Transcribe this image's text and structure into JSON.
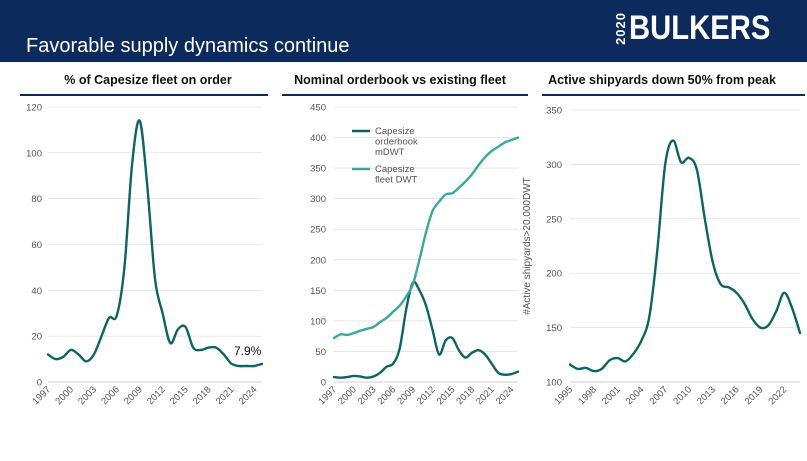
{
  "header": {
    "title": "Favorable supply dynamics continue"
  },
  "logo": {
    "prefix": "2020",
    "name": "BULKERS"
  },
  "colors": {
    "header_bg": "#0d2a5c",
    "dark_teal": "#0e6464",
    "light_teal": "#3aa8a0",
    "axis_text": "#555555",
    "grid": "#d9d9d9",
    "rule": "#0d2a5c"
  },
  "chart_data": [
    {
      "type": "line",
      "title": "% of Capesize fleet on order",
      "ylim": [
        0,
        120
      ],
      "yticks": [
        0,
        20,
        40,
        60,
        80,
        100,
        120
      ],
      "xlim": [
        1997,
        2025
      ],
      "xticks": [
        "1997",
        "2000",
        "2003",
        "2006",
        "2009",
        "2012",
        "2015",
        "2018",
        "2021",
        "2024"
      ],
      "annotation": "7.9%",
      "series": [
        {
          "color": "#0e6464",
          "x": [
            1997,
            1998,
            1999,
            2000,
            2001,
            2002,
            2003,
            2004,
            2005,
            2006,
            2007,
            2008,
            2009,
            2010,
            2011,
            2012,
            2013,
            2014,
            2015,
            2016,
            2017,
            2018,
            2019,
            2020,
            2021,
            2022,
            2023,
            2024,
            2025
          ],
          "values": [
            12,
            10,
            11,
            14,
            12,
            9,
            12,
            20,
            28,
            29,
            50,
            95,
            114,
            85,
            45,
            30,
            17,
            23,
            24,
            15,
            14,
            15,
            15,
            12,
            8,
            7,
            7,
            7,
            7.9
          ]
        }
      ]
    },
    {
      "type": "line",
      "title": "Nominal orderbook vs existing fleet",
      "ylim": [
        0,
        450
      ],
      "yticks": [
        0,
        50,
        100,
        150,
        200,
        250,
        300,
        350,
        400,
        450
      ],
      "xlim": [
        1997,
        2025
      ],
      "xticks": [
        "1997",
        "2000",
        "2003",
        "2006",
        "2009",
        "2012",
        "2015",
        "2018",
        "2021",
        "2024"
      ],
      "legend": "top-left",
      "series": [
        {
          "name": "Capesize orderbook mDWT",
          "color": "#0e6464",
          "x": [
            1997,
            1998,
            1999,
            2000,
            2001,
            2002,
            2003,
            2004,
            2005,
            2006,
            2007,
            2008,
            2009,
            2010,
            2011,
            2012,
            2013,
            2014,
            2015,
            2016,
            2017,
            2018,
            2019,
            2020,
            2021,
            2022,
            2023,
            2024,
            2025
          ],
          "values": [
            8,
            7,
            8,
            10,
            9,
            7,
            9,
            15,
            25,
            30,
            55,
            120,
            163,
            150,
            125,
            85,
            45,
            68,
            72,
            52,
            40,
            48,
            52,
            45,
            30,
            15,
            12,
            13,
            17
          ]
        },
        {
          "name": "Capesize fleet DWT",
          "color": "#3aa8a0",
          "x": [
            1997,
            1998,
            1999,
            2000,
            2001,
            2002,
            2003,
            2004,
            2005,
            2006,
            2007,
            2008,
            2009,
            2010,
            2011,
            2012,
            2013,
            2014,
            2015,
            2016,
            2017,
            2018,
            2019,
            2020,
            2021,
            2022,
            2023,
            2024,
            2025
          ],
          "values": [
            72,
            78,
            77,
            80,
            84,
            87,
            90,
            98,
            105,
            115,
            125,
            140,
            160,
            200,
            245,
            280,
            295,
            307,
            309,
            318,
            328,
            340,
            355,
            368,
            378,
            385,
            392,
            396,
            400
          ]
        }
      ]
    },
    {
      "type": "line",
      "title": "Active shipyards down 50% from peak",
      "ylabel": "#Active shipyards>20.000DWT",
      "ylim": [
        100,
        350
      ],
      "yticks": [
        100,
        150,
        200,
        250,
        300,
        350
      ],
      "xlim": [
        1995,
        2024
      ],
      "xticks": [
        "1995",
        "1998",
        "2001",
        "2004",
        "2007",
        "2010",
        "2013",
        "2016",
        "2019",
        "2022"
      ],
      "series": [
        {
          "color": "#0e6464",
          "x": [
            1995,
            1996,
            1997,
            1998,
            1999,
            2000,
            2001,
            2002,
            2003,
            2004,
            2005,
            2006,
            2007,
            2008,
            2009,
            2010,
            2011,
            2012,
            2013,
            2014,
            2015,
            2016,
            2017,
            2018,
            2019,
            2020,
            2021,
            2022,
            2023,
            2024
          ],
          "values": [
            116,
            112,
            113,
            110,
            112,
            120,
            122,
            119,
            126,
            138,
            160,
            220,
            300,
            322,
            302,
            306,
            295,
            250,
            210,
            190,
            187,
            182,
            172,
            158,
            150,
            152,
            165,
            182,
            168,
            145
          ]
        }
      ]
    }
  ]
}
